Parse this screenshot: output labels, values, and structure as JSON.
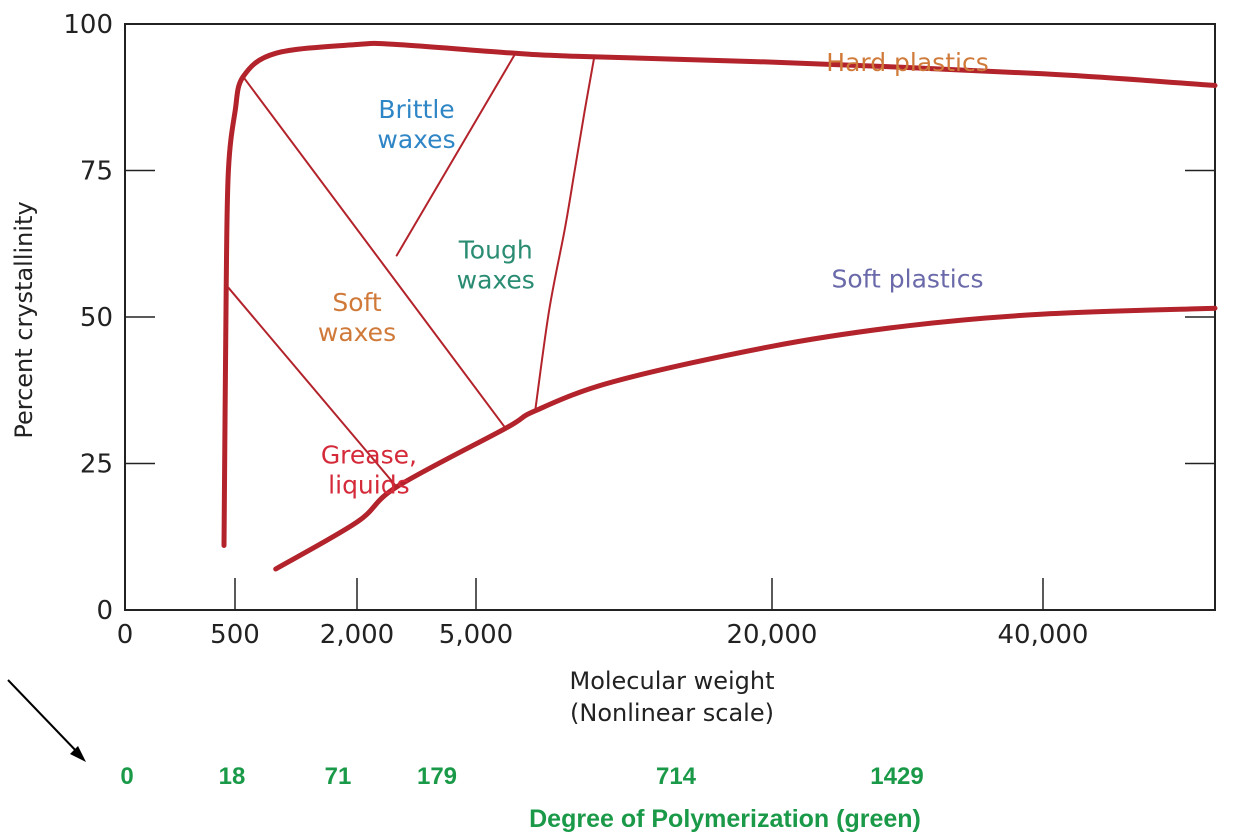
{
  "chart_data": {
    "type": "line",
    "xlabel": "Molecular weight",
    "xlabel_note": "(Nonlinear scale)",
    "ylabel": "Percent crystallinity",
    "ylim": [
      0,
      100
    ],
    "grid": false,
    "x_scale": "nonlinear",
    "x_ticks": [
      "0",
      "500",
      "2,000",
      "5,000",
      "20,000",
      "40,000"
    ],
    "y_ticks": [
      "0",
      "25",
      "50",
      "75",
      "100"
    ],
    "colors": {
      "curve": "#b3232b",
      "axis": "#222222",
      "green": "#1a9a48",
      "orange": "#d07a3a",
      "blue": "#2f86c6",
      "teal": "#2a8c72",
      "purple": "#6a6aaa",
      "red": "#d42a3a"
    },
    "series": [
      {
        "role": "outer boundary",
        "points": [
          [
            450,
            11
          ],
          [
            460,
            55
          ],
          [
            470,
            75
          ],
          [
            500,
            85
          ],
          [
            600,
            91
          ],
          [
            1000,
            95
          ],
          [
            2000,
            96.5
          ],
          [
            3000,
            96.5
          ],
          [
            7000,
            95
          ],
          [
            10000,
            94.5
          ],
          [
            20000,
            93.5
          ],
          [
            40000,
            91.5
          ],
          [
            60000,
            89.5
          ]
        ]
      },
      {
        "role": "lower boundary",
        "points": [
          [
            1000,
            7
          ],
          [
            2000,
            15
          ],
          [
            3000,
            21
          ],
          [
            6500,
            31
          ],
          [
            8000,
            34
          ],
          [
            12000,
            39
          ],
          [
            20000,
            45
          ],
          [
            30000,
            48.5
          ],
          [
            40000,
            50.5
          ],
          [
            60000,
            51.5
          ]
        ]
      },
      {
        "role": "grease / soft waxes boundary",
        "points": [
          [
            470,
            55
          ],
          [
            3000,
            21
          ]
        ]
      },
      {
        "role": "soft / tough waxes boundary",
        "points": [
          [
            600,
            91
          ],
          [
            6500,
            31
          ]
        ]
      },
      {
        "role": "brittle / tough waxes boundary",
        "points": [
          [
            3000,
            60.5
          ],
          [
            7000,
            95
          ]
        ]
      },
      {
        "role": "tough waxes / plastics boundary",
        "points": [
          [
            8000,
            34
          ],
          [
            8700,
            51
          ],
          [
            9500,
            65
          ],
          [
            10000,
            75
          ],
          [
            10500,
            85
          ],
          [
            11000,
            94.5
          ]
        ]
      }
    ],
    "annotations": [
      {
        "lines": [
          "Brittle",
          "waxes"
        ],
        "x": 3500,
        "y": 84,
        "color": "blue"
      },
      {
        "lines": [
          "Hard plastics"
        ],
        "x": 30000,
        "y": 92,
        "color": "orange"
      },
      {
        "lines": [
          "Tough",
          "waxes"
        ],
        "x": 6000,
        "y": 60,
        "color": "teal"
      },
      {
        "lines": [
          "Soft plastics"
        ],
        "x": 30000,
        "y": 55,
        "color": "purple"
      },
      {
        "lines": [
          "Soft",
          "waxes"
        ],
        "x": 2000,
        "y": 51,
        "color": "orange"
      },
      {
        "lines": [
          "Grease,",
          "liquids"
        ],
        "x": 2300,
        "y": 25,
        "color": "red"
      }
    ],
    "secondary_axis": {
      "title": "Degree of Polymerization (green)",
      "values": [
        "0",
        "18",
        "71",
        "179",
        "714",
        "1429"
      ]
    }
  }
}
